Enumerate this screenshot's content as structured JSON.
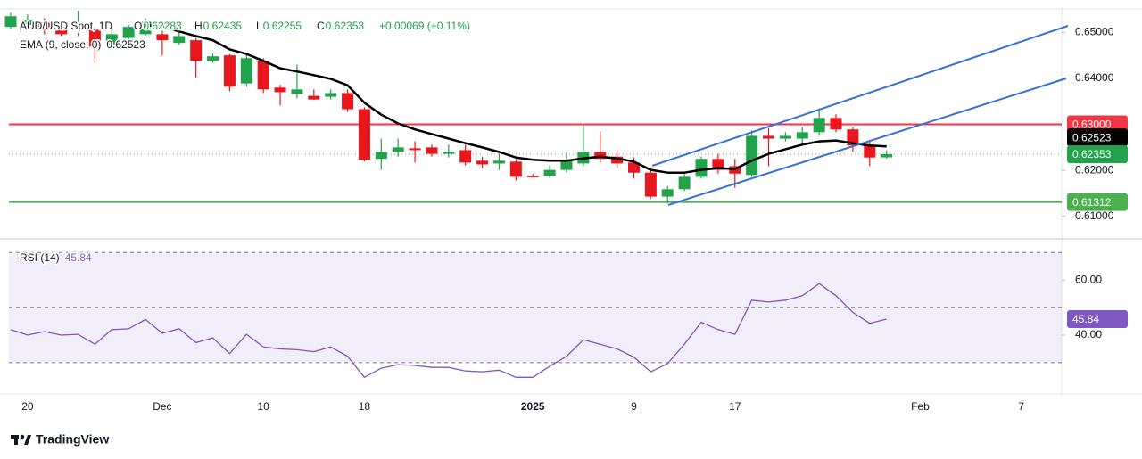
{
  "chart_data": {
    "type": "candlestick",
    "legend": {
      "symbol": "AUD/USD Spot, 1D",
      "ohlc_keys": [
        "O",
        "H",
        "L",
        "C"
      ],
      "change": "+0.00069 (+0.11%)"
    },
    "categories": [
      null,
      "20",
      null,
      null,
      null,
      null,
      null,
      null,
      null,
      "Dec",
      null,
      null,
      null,
      null,
      null,
      "10",
      null,
      null,
      null,
      null,
      null,
      "18",
      null,
      null,
      null,
      null,
      null,
      null,
      null,
      null,
      null,
      "2025",
      null,
      null,
      null,
      null,
      null,
      "9",
      null,
      null,
      null,
      null,
      null,
      "17",
      null,
      null,
      null,
      null,
      null,
      null,
      null,
      null,
      null,
      null,
      "Feb",
      null,
      null,
      null,
      null,
      null,
      "7",
      null,
      null
    ],
    "open": [
      0.6512,
      0.6516,
      0.6521,
      0.6512,
      0.6506,
      0.6506,
      0.6473,
      0.6488,
      0.6496,
      0.6496,
      0.6477,
      0.6483,
      0.6438,
      0.645,
      0.6389,
      0.6438,
      0.638,
      0.6366,
      0.6362,
      0.636,
      0.6368,
      0.6333,
      0.6225,
      0.624,
      0.6248,
      0.625,
      0.6236,
      0.6244,
      0.6221,
      0.6215,
      0.6219,
      0.6188,
      0.6188,
      0.6201,
      0.6215,
      0.624,
      0.623,
      0.6217,
      0.6195,
      0.6143,
      0.6159,
      0.6186,
      0.6225,
      0.6209,
      0.619,
      0.6275,
      0.6269,
      0.6269,
      0.6283,
      0.6314,
      0.6289,
      0.6254,
      0.62283,
      null,
      null,
      null,
      null,
      null,
      null,
      null,
      null,
      null,
      null
    ],
    "high": [
      0.6543,
      0.6539,
      0.6531,
      0.6519,
      0.6547,
      0.6512,
      0.6508,
      0.6516,
      0.6531,
      0.6521,
      0.65,
      0.6488,
      0.6453,
      0.6453,
      0.6453,
      0.6444,
      0.6386,
      0.643,
      0.6376,
      0.6376,
      0.6376,
      0.6337,
      0.6269,
      0.6269,
      0.6263,
      0.6256,
      0.6256,
      0.6256,
      0.623,
      0.6236,
      0.6225,
      0.6192,
      0.6211,
      0.624,
      0.6298,
      0.6285,
      0.6244,
      0.6228,
      0.6205,
      0.6166,
      0.6192,
      0.623,
      0.6236,
      0.6225,
      0.6287,
      0.6292,
      0.6283,
      0.6294,
      0.6333,
      0.6322,
      0.6294,
      0.6263,
      0.62435,
      null,
      null,
      null,
      null,
      null,
      null,
      null,
      null,
      null,
      null
    ],
    "low": [
      0.6508,
      0.6512,
      0.6496,
      0.6492,
      0.6492,
      0.6434,
      0.6463,
      0.6483,
      0.6492,
      0.645,
      0.6473,
      0.6401,
      0.6434,
      0.6372,
      0.6382,
      0.6368,
      0.6341,
      0.6356,
      0.6353,
      0.6354,
      0.6327,
      0.6219,
      0.6201,
      0.623,
      0.6217,
      0.623,
      0.6228,
      0.6211,
      0.6205,
      0.6201,
      0.6178,
      0.6184,
      0.6184,
      0.6195,
      0.6209,
      0.6217,
      0.6205,
      0.6182,
      0.6139,
      0.6128,
      0.6155,
      0.6182,
      0.6193,
      0.6162,
      0.6186,
      0.6209,
      0.6263,
      0.6259,
      0.6275,
      0.6283,
      0.624,
      0.6209,
      0.62255,
      null,
      null,
      null,
      null,
      null,
      null,
      null,
      null,
      null,
      null
    ],
    "close": [
      0.6535,
      0.6527,
      0.6506,
      0.6496,
      0.6512,
      0.6469,
      0.6496,
      0.6512,
      0.6523,
      0.6483,
      0.6492,
      0.6438,
      0.6448,
      0.6382,
      0.6444,
      0.6376,
      0.637,
      0.6376,
      0.6354,
      0.6368,
      0.6333,
      0.6223,
      0.624,
      0.625,
      0.6244,
      0.6236,
      0.624,
      0.6217,
      0.6213,
      0.6221,
      0.6186,
      0.6186,
      0.6201,
      0.6221,
      0.624,
      0.6225,
      0.6215,
      0.6195,
      0.6143,
      0.6159,
      0.6186,
      0.6225,
      0.6201,
      0.6193,
      0.6275,
      0.6269,
      0.6275,
      0.6283,
      0.6314,
      0.6289,
      0.6254,
      0.6228,
      0.62353,
      null,
      null,
      null,
      null,
      null,
      null,
      null,
      null,
      null,
      null
    ],
    "up_color": "#22a24a",
    "down_color": "#e8171d",
    "ylim": [
      0.6055,
      0.6551
    ],
    "yticks": [
      {
        "value": 0.65,
        "label": "0.65000"
      },
      {
        "value": 0.64,
        "label": "0.64000"
      },
      {
        "value": 0.62,
        "label": "0.62000"
      },
      {
        "value": 0.61,
        "label": "0.61000"
      }
    ],
    "levels": [
      {
        "value": 0.63,
        "label": "0.63000",
        "color": "#f23645"
      },
      {
        "value": 0.61312,
        "label": "0.61312",
        "color": "#4caf50"
      }
    ],
    "ema": {
      "name": "EMA (9, close, 0)",
      "color": "#000000",
      "values": [
        null,
        null,
        null,
        null,
        null,
        null,
        null,
        null,
        0.6516,
        0.6512,
        0.6502,
        0.6492,
        0.6483,
        0.6463,
        0.6453,
        0.6438,
        0.6422,
        0.6415,
        0.6407,
        0.6399,
        0.6385,
        0.6347,
        0.6321,
        0.6302,
        0.6289,
        0.6279,
        0.6269,
        0.6259,
        0.625,
        0.624,
        0.6228,
        0.6223,
        0.6221,
        0.6221,
        0.6226,
        0.623,
        0.6226,
        0.6219,
        0.6201,
        0.6195,
        0.6195,
        0.6201,
        0.6205,
        0.6203,
        0.6221,
        0.6236,
        0.6246,
        0.6256,
        0.6263,
        0.6265,
        0.6259,
        0.6254,
        0.62523,
        null,
        null,
        null,
        null,
        null,
        null,
        null,
        null,
        null,
        null
      ]
    },
    "rsi": {
      "name": "RSI (14)",
      "color": "#7e57c2",
      "values": [
        42.0,
        40.0,
        41.3,
        40.0,
        40.3,
        36.7,
        42.0,
        42.3,
        45.7,
        40.7,
        42.3,
        37.3,
        39.0,
        33.3,
        40.3,
        35.7,
        35.0,
        34.7,
        34.0,
        35.7,
        32.3,
        24.7,
        28.0,
        29.3,
        29.0,
        28.3,
        28.3,
        27.0,
        26.7,
        27.3,
        24.7,
        24.7,
        28.7,
        32.3,
        38.3,
        36.7,
        35.0,
        32.0,
        26.7,
        29.7,
        36.7,
        44.7,
        42.0,
        40.3,
        52.7,
        52.0,
        52.7,
        54.3,
        58.7,
        54.3,
        48.3,
        44.3,
        45.84,
        null,
        null,
        null,
        null,
        null,
        null,
        null,
        null,
        null,
        null
      ],
      "ylim": [
        19.3,
        74.3
      ],
      "yticks": [
        {
          "value": 60,
          "label": "60.00"
        },
        {
          "value": 40,
          "label": "40.00"
        }
      ],
      "band": [
        30,
        70
      ],
      "mid": 50
    },
    "brand": "TradingView"
  }
}
